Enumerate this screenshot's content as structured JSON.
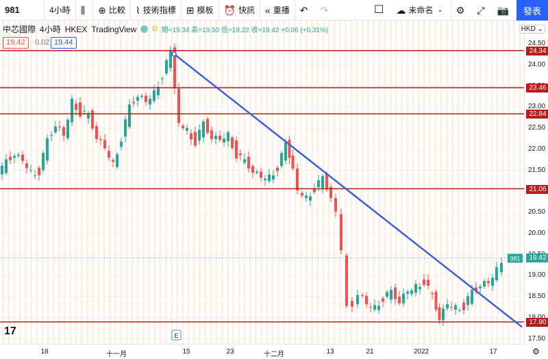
{
  "toolbar": {
    "symbol": "981",
    "interval": "4小時",
    "compare_label": "比較",
    "indicators_label": "技術指標",
    "templates_label": "模板",
    "alert_label": "快訊",
    "replay_label": "重播",
    "layout_name": "未命名",
    "publish_label": "發表"
  },
  "legend": {
    "name": "中芯國際",
    "interval": "4小時",
    "exchange": "HKEX",
    "source": "TradingView",
    "d_badge": "D",
    "ohlc": "開=19.34 高=19.50 低=19.22 收=19.42 +0.06 (+0.31%)"
  },
  "price_boxes": {
    "bid": "19.42",
    "spread": "0.02",
    "ask": "19.44"
  },
  "currency": "HKD",
  "y_axis_ticks": [
    "24.50",
    "24.00",
    "23.50",
    "23.00",
    "22.50",
    "22.00",
    "21.50",
    "21.00",
    "20.50",
    "20.00",
    "19.50",
    "19.00",
    "18.50",
    "18.00",
    "17.50"
  ],
  "x_axis_ticks": [
    {
      "label": "18",
      "x": 65
    },
    {
      "label": "十一月",
      "x": 170
    },
    {
      "label": "15",
      "x": 272
    },
    {
      "label": "23",
      "x": 336
    },
    {
      "label": "十二月",
      "x": 400
    },
    {
      "label": "13",
      "x": 482
    },
    {
      "label": "21",
      "x": 540
    },
    {
      "label": "2022",
      "x": 615
    },
    {
      "label": "17",
      "x": 720
    }
  ],
  "hlines": [
    24.34,
    23.46,
    22.84,
    21.06,
    17.9
  ],
  "hline_tags": [
    "24.34",
    "23.46",
    "22.84",
    "21.06",
    "17.90"
  ],
  "current_tag": {
    "symbol": "981",
    "price": "19.42"
  },
  "earnings_marker": "E",
  "colors": {
    "up": "#26a69a",
    "down": "#ef5350",
    "level": "#b71c1c",
    "trend": "#3c5fd6",
    "accent": "#2962ff"
  }
}
